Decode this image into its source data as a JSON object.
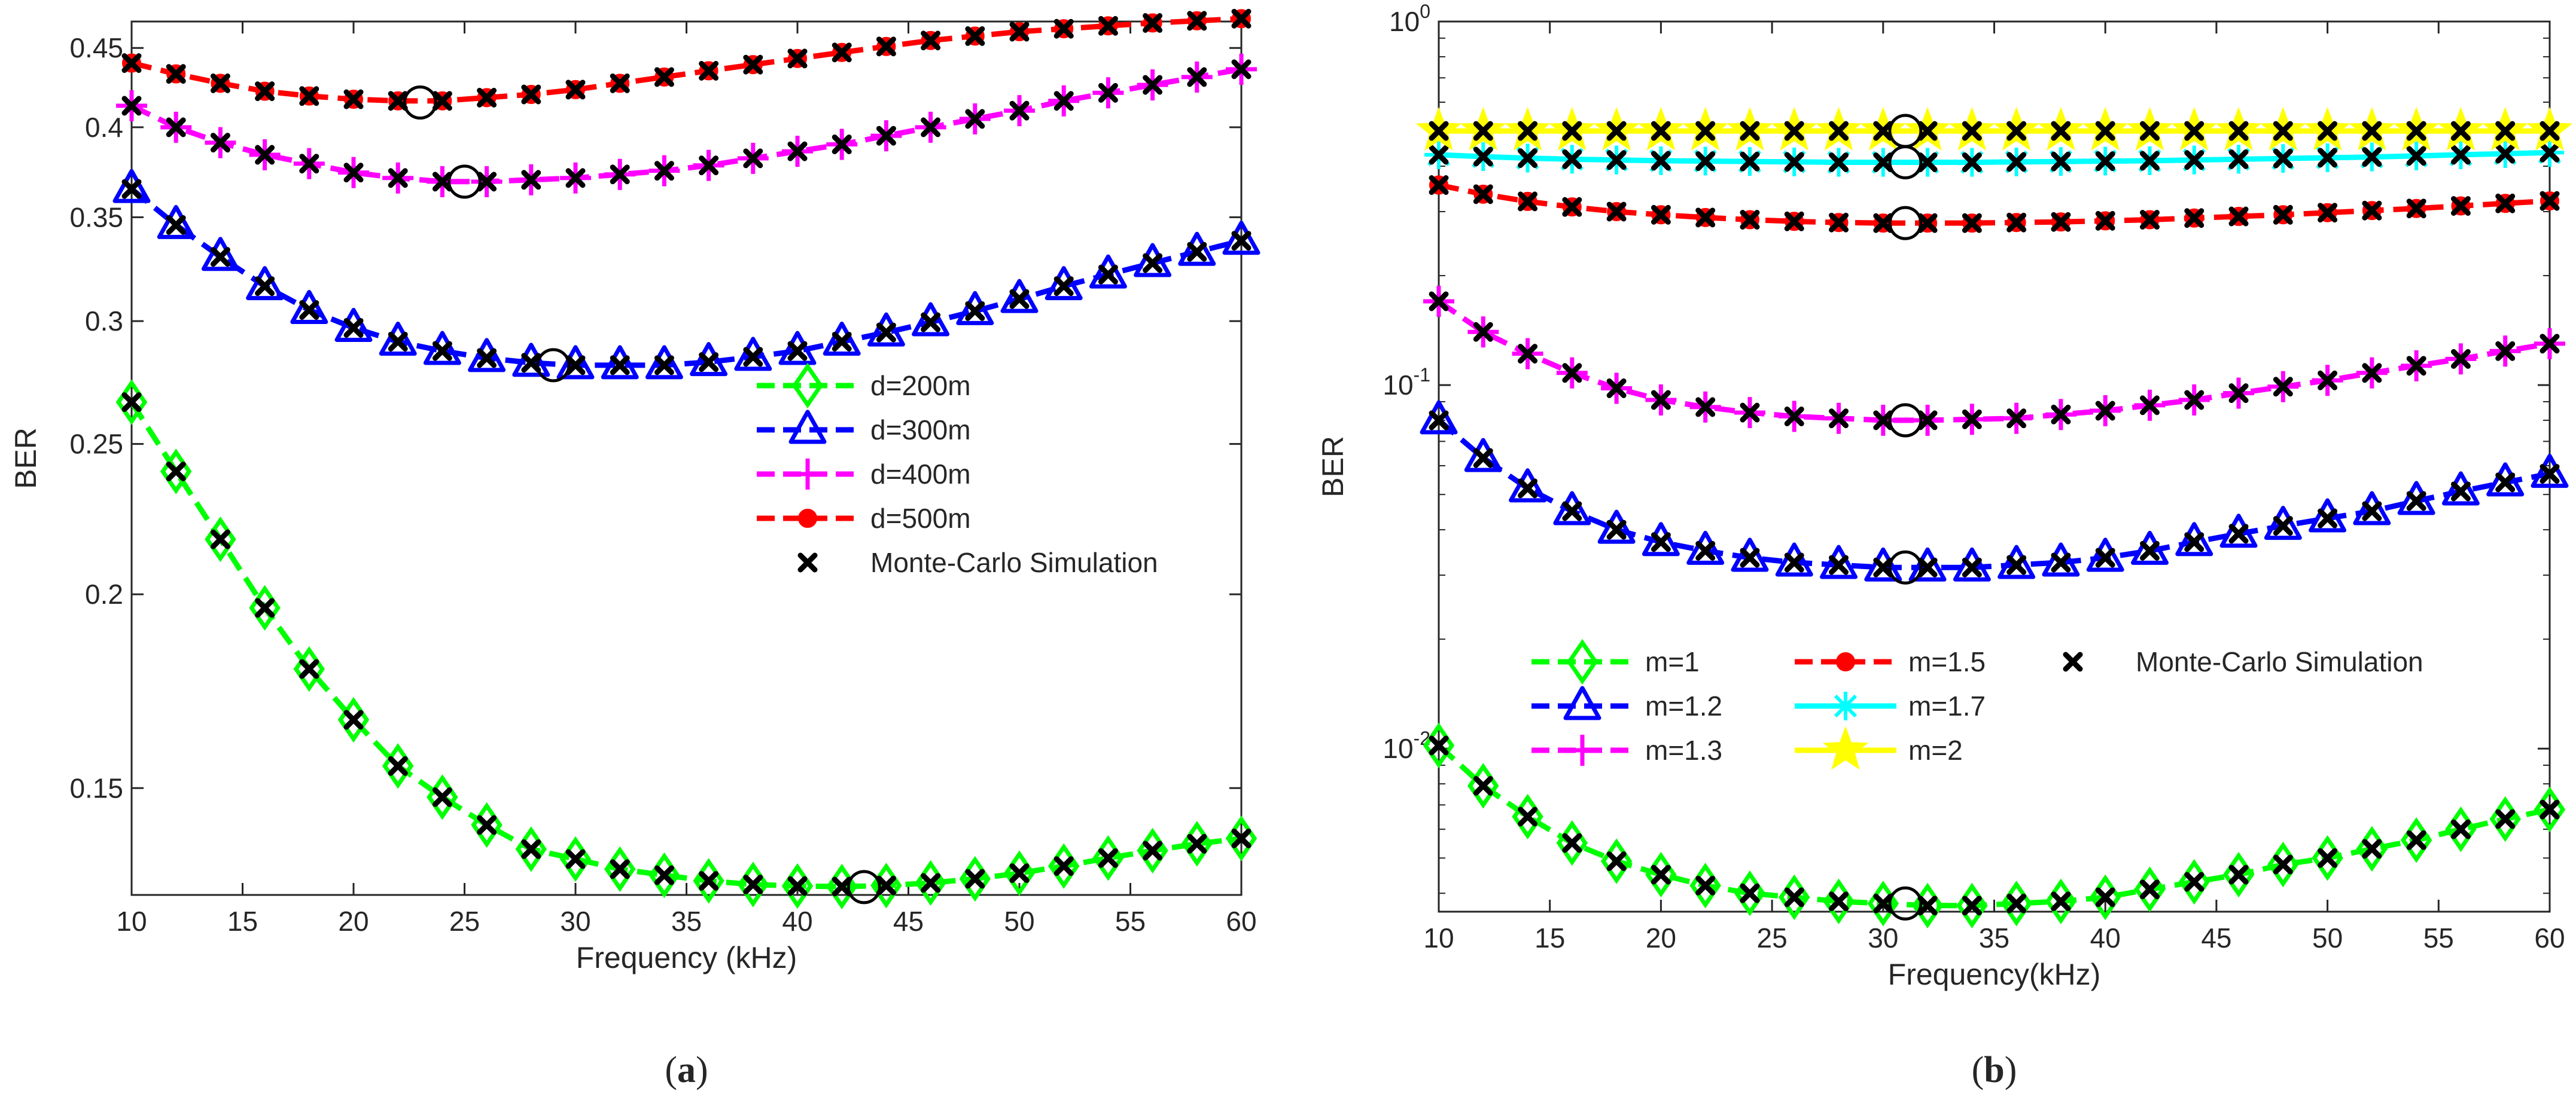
{
  "figure": {
    "panels": [
      {
        "caption": "(a)",
        "caption_bold_letter": "a",
        "xlabel": "Frequency (kHz)",
        "ylabel": "BER",
        "x_ticks": [
          10,
          15,
          20,
          25,
          30,
          35,
          40,
          45,
          50,
          55,
          60
        ],
        "y_ticks": [
          {
            "value": 0.15,
            "label": "0.15"
          },
          {
            "value": 0.2,
            "label": "0.2"
          },
          {
            "value": 0.25,
            "label": "0.25"
          },
          {
            "value": 0.3,
            "label": "0.3"
          },
          {
            "value": 0.35,
            "label": "0.35"
          },
          {
            "value": 0.4,
            "label": "0.4"
          },
          {
            "value": 0.45,
            "label": "0.45"
          }
        ]
      },
      {
        "caption": "(b)",
        "caption_bold_letter": "b",
        "xlabel": "Frequency(kHz)",
        "ylabel": "BER",
        "x_ticks": [
          10,
          15,
          20,
          25,
          30,
          35,
          40,
          45,
          50,
          55,
          60
        ],
        "y_ticks": [
          {
            "value": 0.01,
            "base": "10",
            "exp": "-2"
          },
          {
            "value": 0.1,
            "base": "10",
            "exp": "-1"
          },
          {
            "value": 1,
            "base": "10",
            "exp": "0"
          }
        ]
      }
    ]
  },
  "chart_data": [
    {
      "type": "line",
      "title": "",
      "xlabel": "Frequency (kHz)",
      "ylabel": "BER",
      "xlim": [
        10,
        60
      ],
      "ylim": [
        0.128,
        0.468
      ],
      "y_scale": "log",
      "grid": false,
      "legend_position": "center-right",
      "x": [
        10,
        12,
        14,
        16,
        18,
        20,
        22,
        24,
        26,
        28,
        30,
        32,
        34,
        36,
        38,
        40,
        42,
        44,
        46,
        48,
        50,
        52,
        54,
        56,
        58,
        60
      ],
      "series": [
        {
          "name": "d=200m",
          "color": "#00ff00",
          "marker": "diamond",
          "line": "dashed",
          "values": [
            0.266,
            0.24,
            0.217,
            0.196,
            0.179,
            0.166,
            0.155,
            0.148,
            0.142,
            0.137,
            0.135,
            0.133,
            0.1318,
            0.1307,
            0.13,
            0.1297,
            0.1296,
            0.1298,
            0.1303,
            0.1311,
            0.1322,
            0.1336,
            0.1352,
            0.1367,
            0.1381,
            0.1392
          ]
        },
        {
          "name": "d=300m",
          "color": "#0000ff",
          "marker": "triangle",
          "line": "dashed",
          "values": [
            0.365,
            0.346,
            0.33,
            0.316,
            0.305,
            0.297,
            0.291,
            0.287,
            0.284,
            0.282,
            0.281,
            0.281,
            0.281,
            0.2823,
            0.2845,
            0.287,
            0.291,
            0.295,
            0.2995,
            0.3045,
            0.31,
            0.316,
            0.3215,
            0.327,
            0.3325,
            0.338
          ]
        },
        {
          "name": "d=400m",
          "color": "#ff00ff",
          "marker": "plus",
          "line": "dashed",
          "values": [
            0.413,
            0.4,
            0.391,
            0.384,
            0.379,
            0.374,
            0.371,
            0.369,
            0.369,
            0.37,
            0.371,
            0.373,
            0.375,
            0.378,
            0.382,
            0.386,
            0.39,
            0.395,
            0.4,
            0.405,
            0.41,
            0.416,
            0.421,
            0.426,
            0.431,
            0.436
          ]
        },
        {
          "name": "d=500m",
          "color": "#ff0000",
          "marker": "circle",
          "line": "dashed",
          "values": [
            0.44,
            0.433,
            0.427,
            0.422,
            0.419,
            0.417,
            0.416,
            0.416,
            0.418,
            0.42,
            0.423,
            0.427,
            0.431,
            0.435,
            0.439,
            0.443,
            0.447,
            0.451,
            0.455,
            0.458,
            0.461,
            0.463,
            0.465,
            0.467,
            0.4685,
            0.47
          ]
        },
        {
          "name": "Monte-Carlo Simulation",
          "color": "#000000",
          "marker": "x",
          "line": "none"
        }
      ],
      "annotations": [
        {
          "type": "optimum-circle",
          "x": 43,
          "y": 0.1295
        },
        {
          "type": "optimum-circle",
          "x": 29,
          "y": 0.281
        },
        {
          "type": "optimum-circle",
          "x": 25,
          "y": 0.369
        },
        {
          "type": "optimum-circle",
          "x": 23,
          "y": 0.415
        }
      ]
    },
    {
      "type": "line",
      "title": "",
      "xlabel": "Frequency(kHz)",
      "ylabel": "BER",
      "xlim": [
        10,
        60
      ],
      "ylim": [
        0.00356,
        1
      ],
      "y_scale": "log",
      "grid": false,
      "legend_position": "bottom-center",
      "x": [
        10,
        12,
        14,
        16,
        18,
        20,
        22,
        24,
        26,
        28,
        30,
        32,
        34,
        36,
        38,
        40,
        42,
        44,
        46,
        48,
        50,
        52,
        54,
        56,
        58,
        60
      ],
      "series": [
        {
          "name": "m=1",
          "color": "#00ff00",
          "marker": "diamond",
          "line": "dashed",
          "values": [
            0.0102,
            0.0079,
            0.0065,
            0.0055,
            0.0049,
            0.0045,
            0.0042,
            0.004,
            0.0039,
            0.0038,
            0.00375,
            0.0037,
            0.0037,
            0.00375,
            0.0038,
            0.0039,
            0.0041,
            0.0043,
            0.0045,
            0.0048,
            0.005,
            0.0053,
            0.0056,
            0.006,
            0.0064,
            0.0068
          ]
        },
        {
          "name": "m=1.2",
          "color": "#0000ff",
          "marker": "triangle",
          "line": "dashed",
          "values": [
            0.08,
            0.063,
            0.052,
            0.045,
            0.04,
            0.037,
            0.035,
            0.0335,
            0.0325,
            0.032,
            0.0315,
            0.0315,
            0.0315,
            0.032,
            0.0325,
            0.0335,
            0.035,
            0.037,
            0.039,
            0.041,
            0.043,
            0.045,
            0.048,
            0.051,
            0.054,
            0.057
          ]
        },
        {
          "name": "m=1.3",
          "color": "#ff00ff",
          "marker": "plus",
          "line": "dashed",
          "values": [
            0.17,
            0.14,
            0.122,
            0.108,
            0.098,
            0.091,
            0.087,
            0.084,
            0.082,
            0.081,
            0.08,
            0.08,
            0.0805,
            0.081,
            0.083,
            0.085,
            0.088,
            0.091,
            0.095,
            0.099,
            0.103,
            0.108,
            0.113,
            0.118,
            0.124,
            0.13
          ]
        },
        {
          "name": "m=1.5",
          "color": "#ff0000",
          "marker": "circle",
          "line": "dashed",
          "values": [
            0.355,
            0.335,
            0.32,
            0.309,
            0.3,
            0.294,
            0.289,
            0.285,
            0.282,
            0.28,
            0.279,
            0.279,
            0.279,
            0.28,
            0.281,
            0.283,
            0.285,
            0.288,
            0.291,
            0.294,
            0.298,
            0.302,
            0.306,
            0.311,
            0.316,
            0.321
          ]
        },
        {
          "name": "m=1.7",
          "color": "#00ffff",
          "marker": "star",
          "line": "solid",
          "values": [
            0.43,
            0.425,
            0.421,
            0.418,
            0.416,
            0.414,
            0.413,
            0.412,
            0.411,
            0.41,
            0.41,
            0.41,
            0.41,
            0.411,
            0.412,
            0.413,
            0.414,
            0.416,
            0.418,
            0.42,
            0.422,
            0.424,
            0.427,
            0.43,
            0.433,
            0.436
          ]
        },
        {
          "name": "m=2",
          "color": "#ffff00",
          "marker": "pentagram",
          "line": "solid",
          "values": [
            0.5,
            0.5,
            0.5,
            0.5,
            0.5,
            0.5,
            0.5,
            0.5,
            0.5,
            0.5,
            0.5,
            0.5,
            0.5,
            0.5,
            0.5,
            0.5,
            0.5,
            0.5,
            0.5,
            0.5,
            0.5,
            0.5,
            0.5,
            0.5,
            0.5,
            0.5
          ]
        },
        {
          "name": "Monte-Carlo Simulation",
          "color": "#000000",
          "marker": "x",
          "line": "none"
        }
      ],
      "annotations": [
        {
          "type": "optimum-circle",
          "x": 31,
          "y": 0.00375
        },
        {
          "type": "optimum-circle",
          "x": 31,
          "y": 0.0315
        },
        {
          "type": "optimum-circle",
          "x": 31,
          "y": 0.08
        },
        {
          "type": "optimum-circle",
          "x": 31,
          "y": 0.279
        },
        {
          "type": "optimum-circle",
          "x": 31,
          "y": 0.41
        },
        {
          "type": "optimum-circle",
          "x": 31,
          "y": 0.5
        }
      ]
    }
  ]
}
